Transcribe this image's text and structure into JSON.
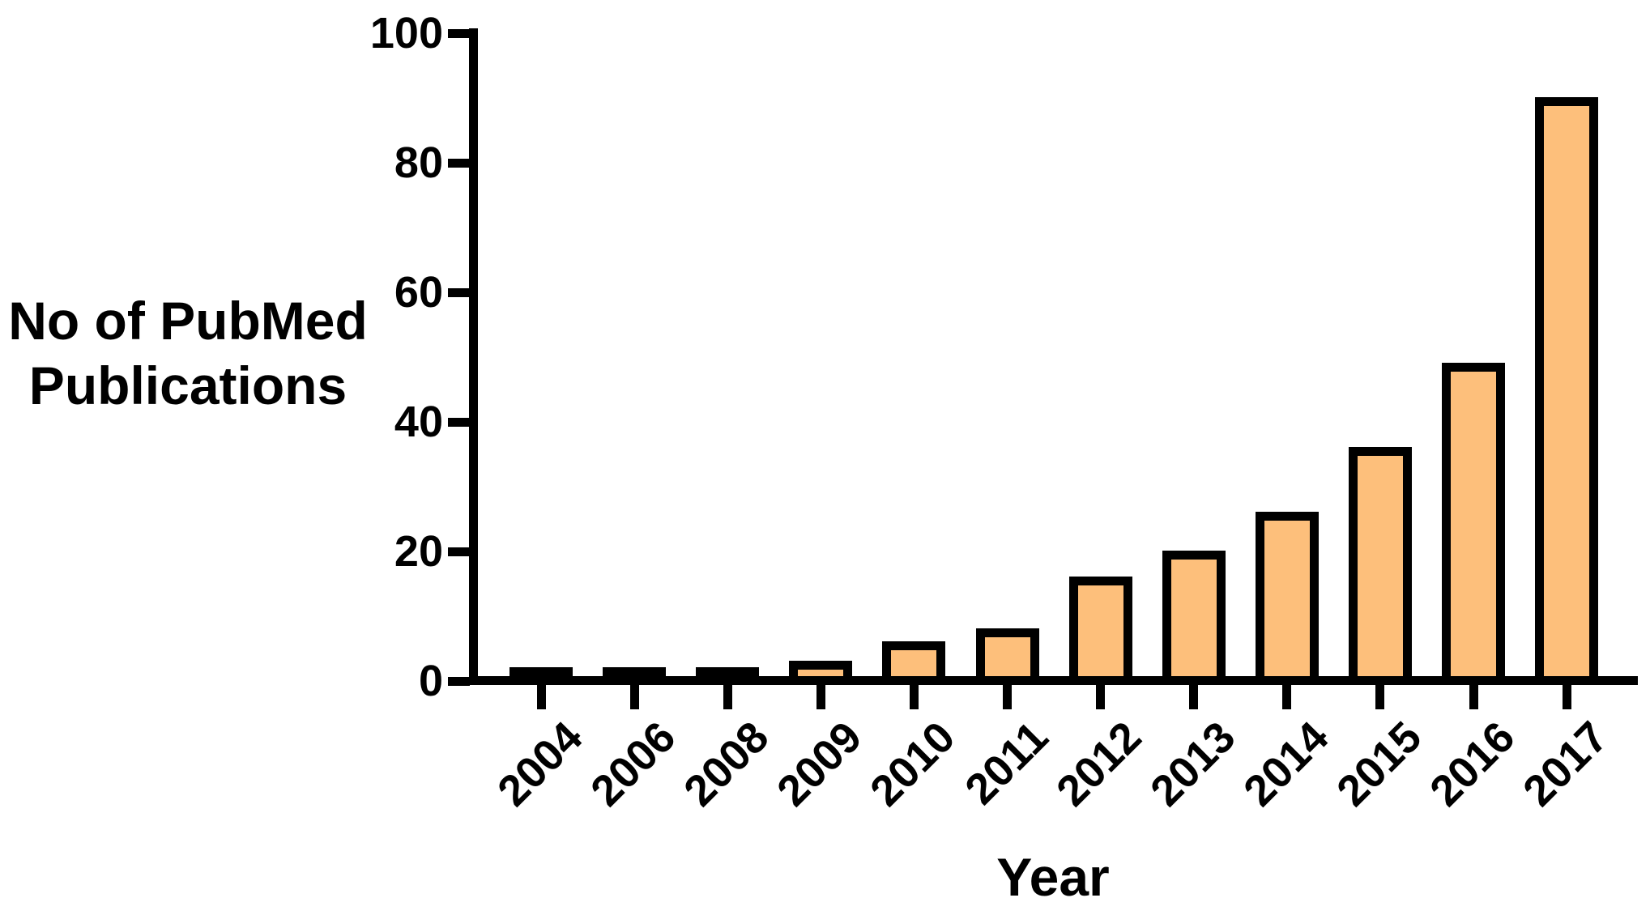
{
  "figure": {
    "y_axis_title_line1": "No of PubMed",
    "y_axis_title_line2": "Publications",
    "x_axis_title": "Year"
  },
  "chart_data": {
    "type": "bar",
    "title": "",
    "xlabel": "Year",
    "ylabel": "No of PubMed Publications",
    "categories": [
      "2004",
      "2006",
      "2008",
      "2009",
      "2010",
      "2011",
      "2012",
      "2013",
      "2014",
      "2015",
      "2016",
      "2017"
    ],
    "values": [
      1,
      1,
      1,
      2,
      5,
      7,
      15,
      19,
      25,
      35,
      48,
      89
    ],
    "ylim": [
      0,
      100
    ],
    "yticks": [
      0,
      20,
      40,
      60,
      80,
      100
    ],
    "grid": false,
    "legend": "none",
    "orientation": "vertical",
    "bar_fill_color": "#FDBF7B",
    "bar_border_color": "#000000",
    "axis_color": "#000000"
  }
}
